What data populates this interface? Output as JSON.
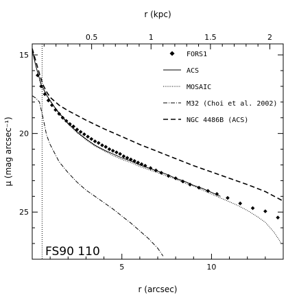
{
  "chart_data": {
    "type": "line",
    "title": "",
    "xlabel": "r (arcsec)",
    "ylabel": "μ (mag arcsec⁻¹)",
    "top_xlabel": "r (kpc)",
    "xlim": [
      0,
      14
    ],
    "ylim": [
      28,
      14.3
    ],
    "y_inverted": true,
    "x_ticks": [
      5,
      10
    ],
    "y_ticks": [
      15,
      20,
      25
    ],
    "top_x_ticks": [
      0.5,
      1,
      1.5,
      2
    ],
    "kpc_per_arcsec": 0.1509,
    "vertical_line_x": 0.55,
    "annotation": "FS90 110",
    "legend_position": "top-right",
    "series": [
      {
        "name": "FORS1",
        "style": "points",
        "x": [
          0.3,
          0.5,
          0.7,
          0.9,
          1.1,
          1.3,
          1.5,
          1.7,
          1.9,
          2.1,
          2.3,
          2.5,
          2.7,
          2.9,
          3.1,
          3.3,
          3.5,
          3.7,
          3.9,
          4.1,
          4.3,
          4.5,
          4.7,
          4.9,
          5.1,
          5.3,
          5.5,
          5.7,
          5.9,
          6.1,
          6.3,
          6.6,
          6.9,
          7.2,
          7.6,
          8.0,
          8.4,
          8.8,
          9.3,
          9.8,
          10.3,
          10.9,
          11.6,
          12.3,
          13.0,
          13.7
        ],
        "y": [
          16.3,
          17.0,
          17.5,
          17.9,
          18.2,
          18.5,
          18.75,
          19.0,
          19.2,
          19.4,
          19.55,
          19.75,
          19.9,
          20.05,
          20.2,
          20.35,
          20.5,
          20.6,
          20.75,
          20.85,
          21.0,
          21.1,
          21.2,
          21.3,
          21.45,
          21.55,
          21.65,
          21.75,
          21.85,
          21.95,
          22.05,
          22.2,
          22.35,
          22.5,
          22.7,
          22.85,
          23.05,
          23.25,
          23.45,
          23.65,
          23.85,
          24.1,
          24.45,
          24.75,
          24.95,
          25.35
        ]
      },
      {
        "name": "ACS",
        "style": "solid",
        "x": [
          0.0,
          0.1,
          0.2,
          0.3,
          0.4,
          0.5,
          0.6,
          0.8,
          1.0,
          1.2,
          1.5,
          2.0,
          2.5,
          3.0,
          3.5,
          4.0,
          4.5,
          5.0,
          5.5,
          6.0,
          6.5,
          7.0,
          7.5,
          8.0,
          8.5,
          9.0,
          9.5,
          10.0,
          10.5
        ],
        "y": [
          14.7,
          15.2,
          15.7,
          16.1,
          16.5,
          16.9,
          17.1,
          17.55,
          17.9,
          18.25,
          18.7,
          19.35,
          19.9,
          20.35,
          20.75,
          21.05,
          21.3,
          21.55,
          21.75,
          22.0,
          22.2,
          22.4,
          22.6,
          22.85,
          23.05,
          23.3,
          23.5,
          23.75,
          24.0
        ]
      },
      {
        "name": "MOSAIC",
        "style": "dotted",
        "x": [
          0.4,
          0.5,
          0.7,
          1.0,
          1.5,
          2.0,
          2.5,
          3.0,
          3.5,
          4.0,
          4.5,
          5.0,
          5.5,
          6.0,
          6.5,
          7.0,
          7.5,
          8.0,
          8.5,
          9.0,
          9.5,
          10.0,
          10.5,
          11.0,
          11.5,
          12.0,
          12.5,
          13.0,
          13.5,
          13.9
        ],
        "y": [
          16.6,
          16.9,
          17.35,
          17.95,
          18.75,
          19.4,
          19.95,
          20.4,
          20.8,
          21.1,
          21.4,
          21.65,
          21.85,
          22.1,
          22.3,
          22.5,
          22.7,
          22.9,
          23.15,
          23.35,
          23.6,
          23.85,
          24.1,
          24.35,
          24.6,
          24.9,
          25.25,
          25.65,
          26.3,
          27.0
        ]
      },
      {
        "name": "M32 (Choi et al. 2002)",
        "style": "dashdot",
        "x": [
          0.0,
          0.2,
          0.4,
          0.6,
          0.8,
          1.0,
          1.5,
          2.0,
          2.5,
          3.0,
          3.5,
          4.0,
          4.5,
          5.0,
          5.5,
          6.0,
          6.5,
          7.0,
          7.3
        ],
        "y": [
          17.6,
          17.75,
          18.0,
          19.0,
          20.1,
          20.7,
          21.8,
          22.5,
          23.1,
          23.6,
          24.0,
          24.4,
          24.8,
          25.25,
          25.7,
          26.2,
          26.7,
          27.3,
          27.8
        ]
      },
      {
        "name": "NGC 4486B (ACS)",
        "style": "dashed",
        "x": [
          0.0,
          0.2,
          0.4,
          0.6,
          0.8,
          1.0,
          1.5,
          2.0,
          3.0,
          4.0,
          5.0,
          6.0,
          7.0,
          8.0,
          9.0,
          10.0,
          11.0,
          12.0,
          13.0,
          14.0
        ],
        "y": [
          14.6,
          15.4,
          16.2,
          16.9,
          17.35,
          17.7,
          18.2,
          18.55,
          19.15,
          19.7,
          20.2,
          20.7,
          21.15,
          21.6,
          22.05,
          22.45,
          22.85,
          23.25,
          23.7,
          24.3
        ]
      }
    ]
  }
}
